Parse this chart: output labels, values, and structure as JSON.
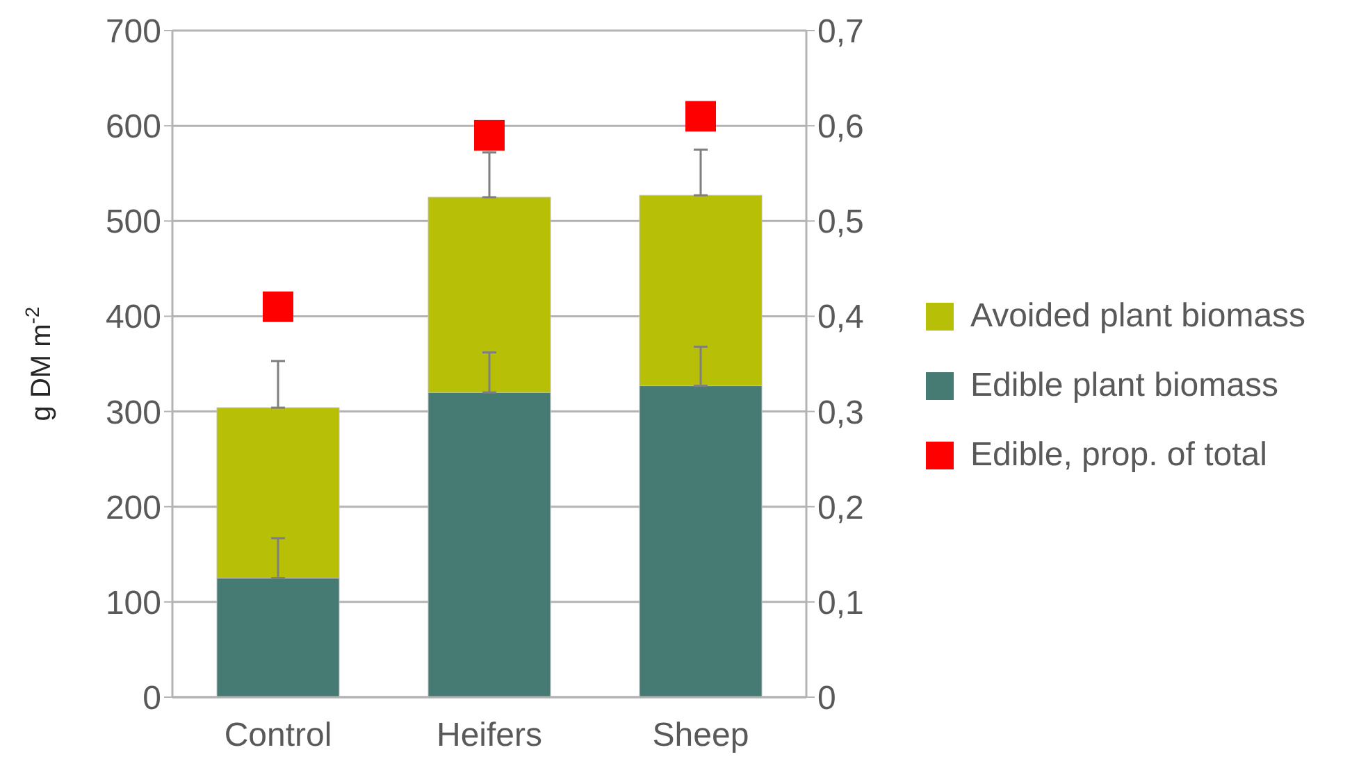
{
  "chart_data": {
    "type": "bar",
    "stacked": true,
    "ylabel": "g DM m$^{-2}$",
    "categories": [
      "Control",
      "Heifers",
      "Sheep"
    ],
    "series": [
      {
        "name": "Edible plant biomass",
        "color": "#457b72",
        "values": [
          125,
          320,
          327
        ],
        "errors": [
          42,
          42,
          41
        ]
      },
      {
        "name": "Avoided plant biomass",
        "color": "#b8bf07",
        "values": [
          179,
          205,
          200
        ],
        "errors": [
          49,
          47,
          48
        ]
      },
      {
        "name": "Edible, prop. of total",
        "type": "scatter",
        "axis": "y2",
        "color": "#ff0000",
        "values": [
          0.41,
          0.59,
          0.61
        ]
      }
    ],
    "ylim": [
      0,
      700
    ],
    "yticks": [
      0,
      100,
      200,
      300,
      400,
      500,
      600,
      700
    ],
    "y2lim": [
      0,
      0.7
    ],
    "y2ticks": [
      0,
      {
        "value": 0.1,
        "label": "0,1"
      },
      {
        "value": 0.2,
        "label": "0,2"
      },
      {
        "value": 0.3,
        "label": "0,3"
      },
      {
        "value": 0.4,
        "label": "0,4"
      },
      {
        "value": 0.5,
        "label": "0,5"
      },
      {
        "value": 0.6,
        "label": "0,6"
      },
      {
        "value": 0.7,
        "label": "0,7"
      }
    ],
    "grid": "y",
    "legend": "right",
    "marker": "square"
  }
}
